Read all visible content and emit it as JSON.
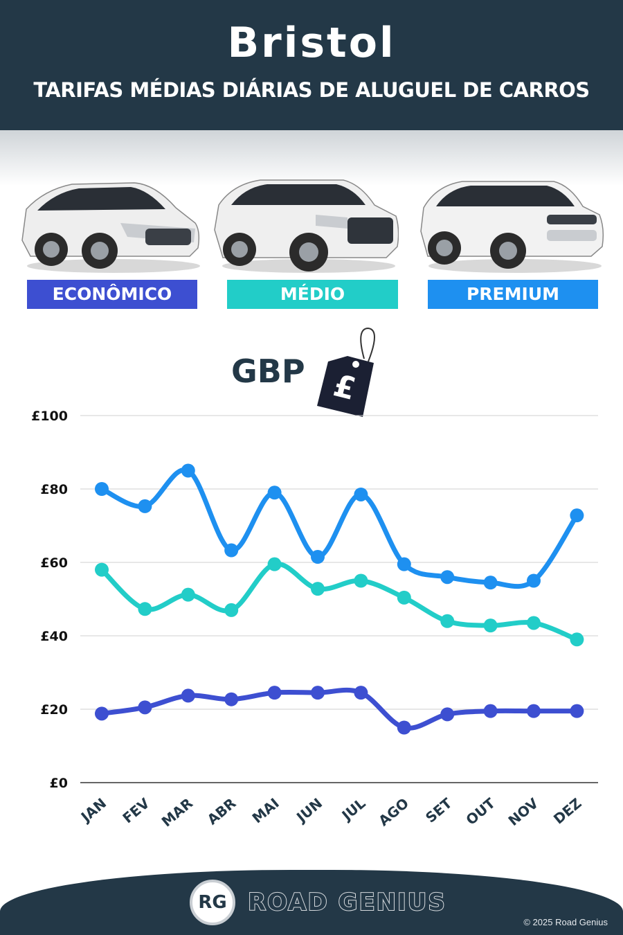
{
  "header": {
    "title": "Bristol",
    "subtitle": "TARIFAS MÉDIAS DIÁRIAS DE ALUGUEL DE CARROS"
  },
  "categories": [
    {
      "label": "ECONÔMICO",
      "color": "#3d4fd1"
    },
    {
      "label": "MÉDIO",
      "color": "#22cdc8"
    },
    {
      "label": "PREMIUM",
      "color": "#1e90f0"
    }
  ],
  "currency_label": "GBP",
  "price_tag_symbol": "£",
  "chart_data": {
    "type": "line",
    "categories": [
      "JAN",
      "FEV",
      "MAR",
      "ABR",
      "MAI",
      "JUN",
      "JUL",
      "AGO",
      "SET",
      "OUT",
      "NOV",
      "DEZ"
    ],
    "yticks": [
      "£0",
      "£20",
      "£40",
      "£60",
      "£80",
      "£100"
    ],
    "ylim": [
      0,
      100
    ],
    "grid": true,
    "series": [
      {
        "name": "PREMIUM",
        "color": "#1e90f0",
        "values": [
          80,
          75.3,
          85,
          63.3,
          79,
          61.5,
          78.5,
          59.5,
          56,
          54.5,
          55,
          72.8
        ]
      },
      {
        "name": "MÉDIO",
        "color": "#22cdc8",
        "values": [
          58,
          47.3,
          51.2,
          47,
          59.5,
          52.8,
          55,
          50.4,
          44,
          42.8,
          43.5,
          39
        ]
      },
      {
        "name": "ECONÔMICO",
        "color": "#3d4fd1",
        "values": [
          18.8,
          20.5,
          23.7,
          22.7,
          24.5,
          24.5,
          24.5,
          15,
          18.6,
          19.5,
          19.5,
          19.5
        ]
      }
    ]
  },
  "footer": {
    "logo_initials": "RG",
    "brand": "ROAD GENIUS",
    "copyright": "© 2025 Road Genius"
  }
}
